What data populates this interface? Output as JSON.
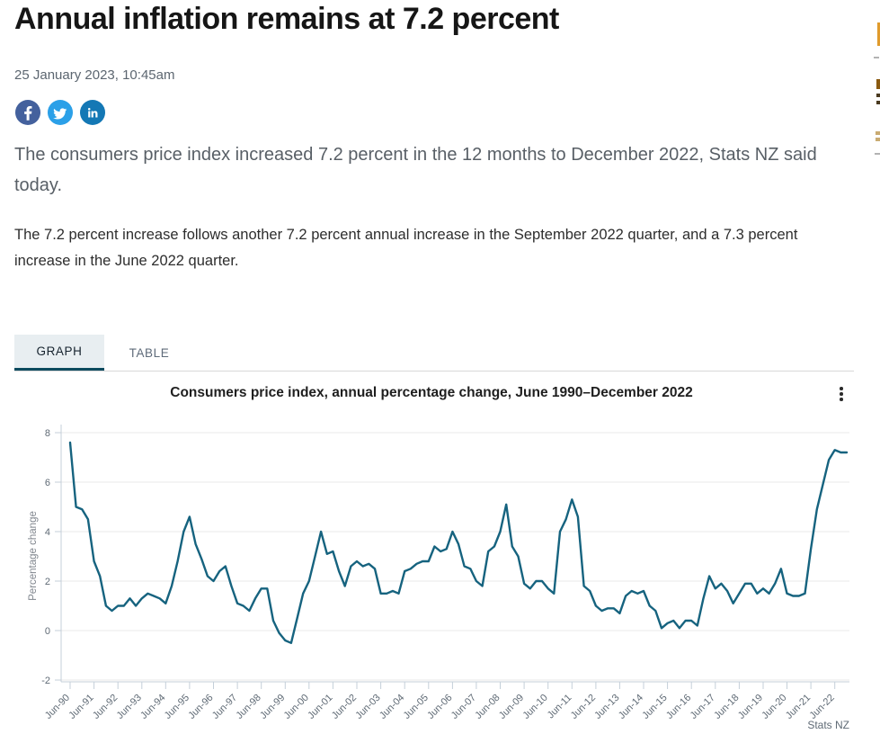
{
  "header": {
    "title": "Annual inflation remains at 7.2 percent",
    "date": "25 January 2023, 10:45am",
    "social": [
      {
        "name": "facebook",
        "color": "#44619d"
      },
      {
        "name": "twitter",
        "color": "#2ba0e8"
      },
      {
        "name": "linkedin",
        "color": "#1478b5"
      }
    ]
  },
  "article": {
    "lead": "The consumers price index increased 7.2 percent in the 12 months to December 2022, Stats NZ said today.",
    "body": "The 7.2 percent increase follows another 7.2 percent annual increase in the September 2022 quarter, and a 7.3 percent increase in the June 2022 quarter."
  },
  "tabs": [
    {
      "label": "GRAPH",
      "active": true
    },
    {
      "label": "TABLE",
      "active": false
    }
  ],
  "colors": {
    "tab_underline": "#0c4a5e",
    "line": "#16637f",
    "right_rail_accent": "#e09b2d"
  },
  "chart_data": {
    "type": "line",
    "title": "Consumers price index, annual percentage change, June 1990–December 2022",
    "xlabel": "",
    "ylabel": "Percentage change",
    "source": "Stats NZ",
    "ylim": [
      -2,
      8
    ],
    "yticks": [
      8,
      6,
      4,
      2,
      0,
      -2
    ],
    "grid": true,
    "x_start": "1990Q2",
    "x_freq": "quarterly",
    "x_tick_labels": [
      "Jun-90",
      "Jun-91",
      "Jun-92",
      "Jun-93",
      "Jun-94",
      "Jun-95",
      "Jun-96",
      "Jun-97",
      "Jun-98",
      "Jun-99",
      "Jun-00",
      "Jun-01",
      "Jun-02",
      "Jun-03",
      "Jun-04",
      "Jun-05",
      "Jun-06",
      "Jun-07",
      "Jun-08",
      "Jun-09",
      "Jun-10",
      "Jun-11",
      "Jun-12",
      "Jun-13",
      "Jun-14",
      "Jun-15",
      "Jun-16",
      "Jun-17",
      "Jun-18",
      "Jun-19",
      "Jun-20",
      "Jun-21",
      "Jun-22"
    ],
    "x_tick_every_points": 4,
    "series": [
      {
        "name": "CPI annual percentage change",
        "color": "#16637f",
        "values": [
          7.6,
          5.0,
          4.9,
          4.5,
          2.8,
          2.2,
          1.0,
          0.8,
          1.0,
          1.0,
          1.3,
          1.0,
          1.3,
          1.5,
          1.4,
          1.3,
          1.1,
          1.8,
          2.8,
          4.0,
          4.6,
          3.5,
          2.9,
          2.2,
          2.0,
          2.4,
          2.6,
          1.8,
          1.1,
          1.0,
          0.8,
          1.3,
          1.7,
          1.7,
          0.4,
          -0.1,
          -0.4,
          -0.5,
          0.5,
          1.5,
          2.0,
          3.0,
          4.0,
          3.1,
          3.2,
          2.4,
          1.8,
          2.6,
          2.8,
          2.6,
          2.7,
          2.5,
          1.5,
          1.5,
          1.6,
          1.5,
          2.4,
          2.5,
          2.7,
          2.8,
          2.8,
          3.4,
          3.2,
          3.3,
          4.0,
          3.5,
          2.6,
          2.5,
          2.0,
          1.8,
          3.2,
          3.4,
          4.0,
          5.1,
          3.4,
          3.0,
          1.9,
          1.7,
          2.0,
          2.0,
          1.7,
          1.5,
          4.0,
          4.5,
          5.3,
          4.6,
          1.8,
          1.6,
          1.0,
          0.8,
          0.9,
          0.9,
          0.7,
          1.4,
          1.6,
          1.5,
          1.6,
          1.0,
          0.8,
          0.1,
          0.3,
          0.4,
          0.1,
          0.4,
          0.4,
          0.2,
          1.3,
          2.2,
          1.7,
          1.9,
          1.6,
          1.1,
          1.5,
          1.9,
          1.9,
          1.5,
          1.7,
          1.5,
          1.9,
          2.5,
          1.5,
          1.4,
          1.4,
          1.5,
          3.3,
          4.9,
          5.9,
          6.9,
          7.3,
          7.2,
          7.2
        ]
      }
    ]
  }
}
